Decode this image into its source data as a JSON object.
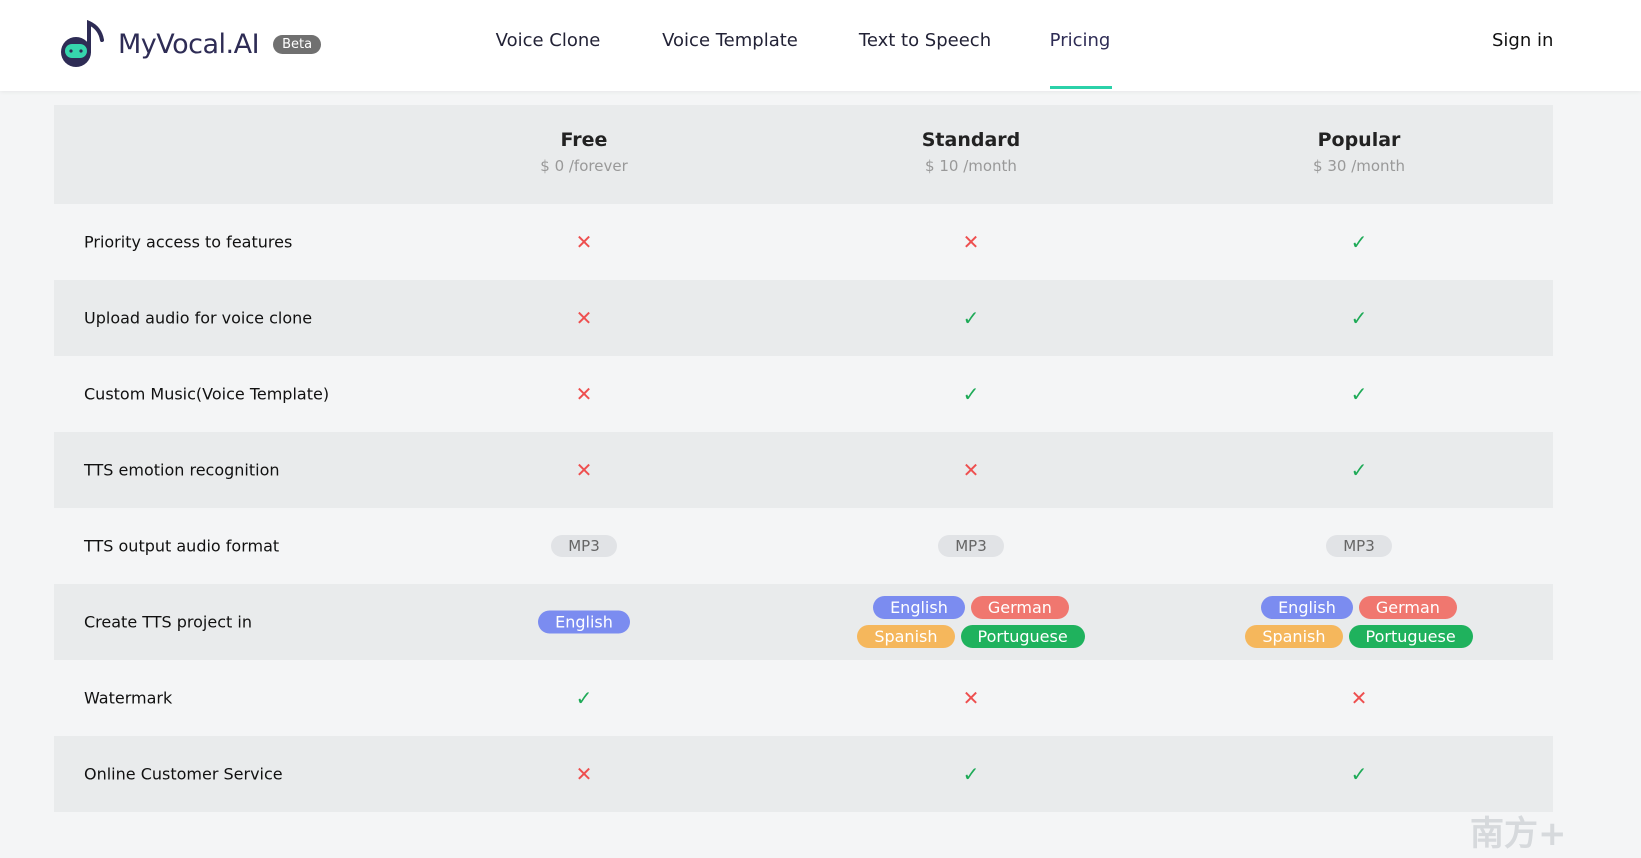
{
  "header": {
    "brand": "MyVocal.AI",
    "badge": "Beta",
    "nav": [
      "Voice Clone",
      "Voice Template",
      "Text to Speech",
      "Pricing"
    ],
    "active": "Pricing",
    "sign_in": "Sign in"
  },
  "colors": {
    "accent": "#2bd1a9",
    "cross": "#ee4f4f",
    "check": "#1eaa57",
    "english": "#7b8cf0",
    "german": "#f0776f",
    "spanish": "#f5b75c",
    "portuguese": "#1fb25d"
  },
  "plans": [
    {
      "name": "Free",
      "price": "$ 0 /forever"
    },
    {
      "name": "Standard",
      "price": "$ 10 /month"
    },
    {
      "name": "Popular",
      "price": "$ 30 /month"
    }
  ],
  "rows": [
    {
      "label": "Priority access to features",
      "values": [
        "no",
        "no",
        "yes"
      ]
    },
    {
      "label": "Upload audio for voice clone",
      "values": [
        "no",
        "yes",
        "yes"
      ]
    },
    {
      "label": "Custom Music(Voice Template)",
      "values": [
        "no",
        "yes",
        "yes"
      ]
    },
    {
      "label": "TTS emotion recognition",
      "values": [
        "no",
        "no",
        "yes"
      ]
    },
    {
      "label": "TTS output audio format",
      "values": [
        [
          "MP3"
        ],
        [
          "MP3"
        ],
        [
          "MP3"
        ]
      ]
    },
    {
      "label": "Create TTS project in",
      "values": [
        [
          "English"
        ],
        [
          "English",
          "German",
          "Spanish",
          "Portuguese"
        ],
        [
          "English",
          "German",
          "Spanish",
          "Portuguese"
        ]
      ]
    },
    {
      "label": "Watermark",
      "values": [
        "yes",
        "no",
        "no"
      ]
    },
    {
      "label": "Online Customer Service",
      "values": [
        "no",
        "yes",
        "yes"
      ]
    }
  ],
  "watermark": "南方+"
}
